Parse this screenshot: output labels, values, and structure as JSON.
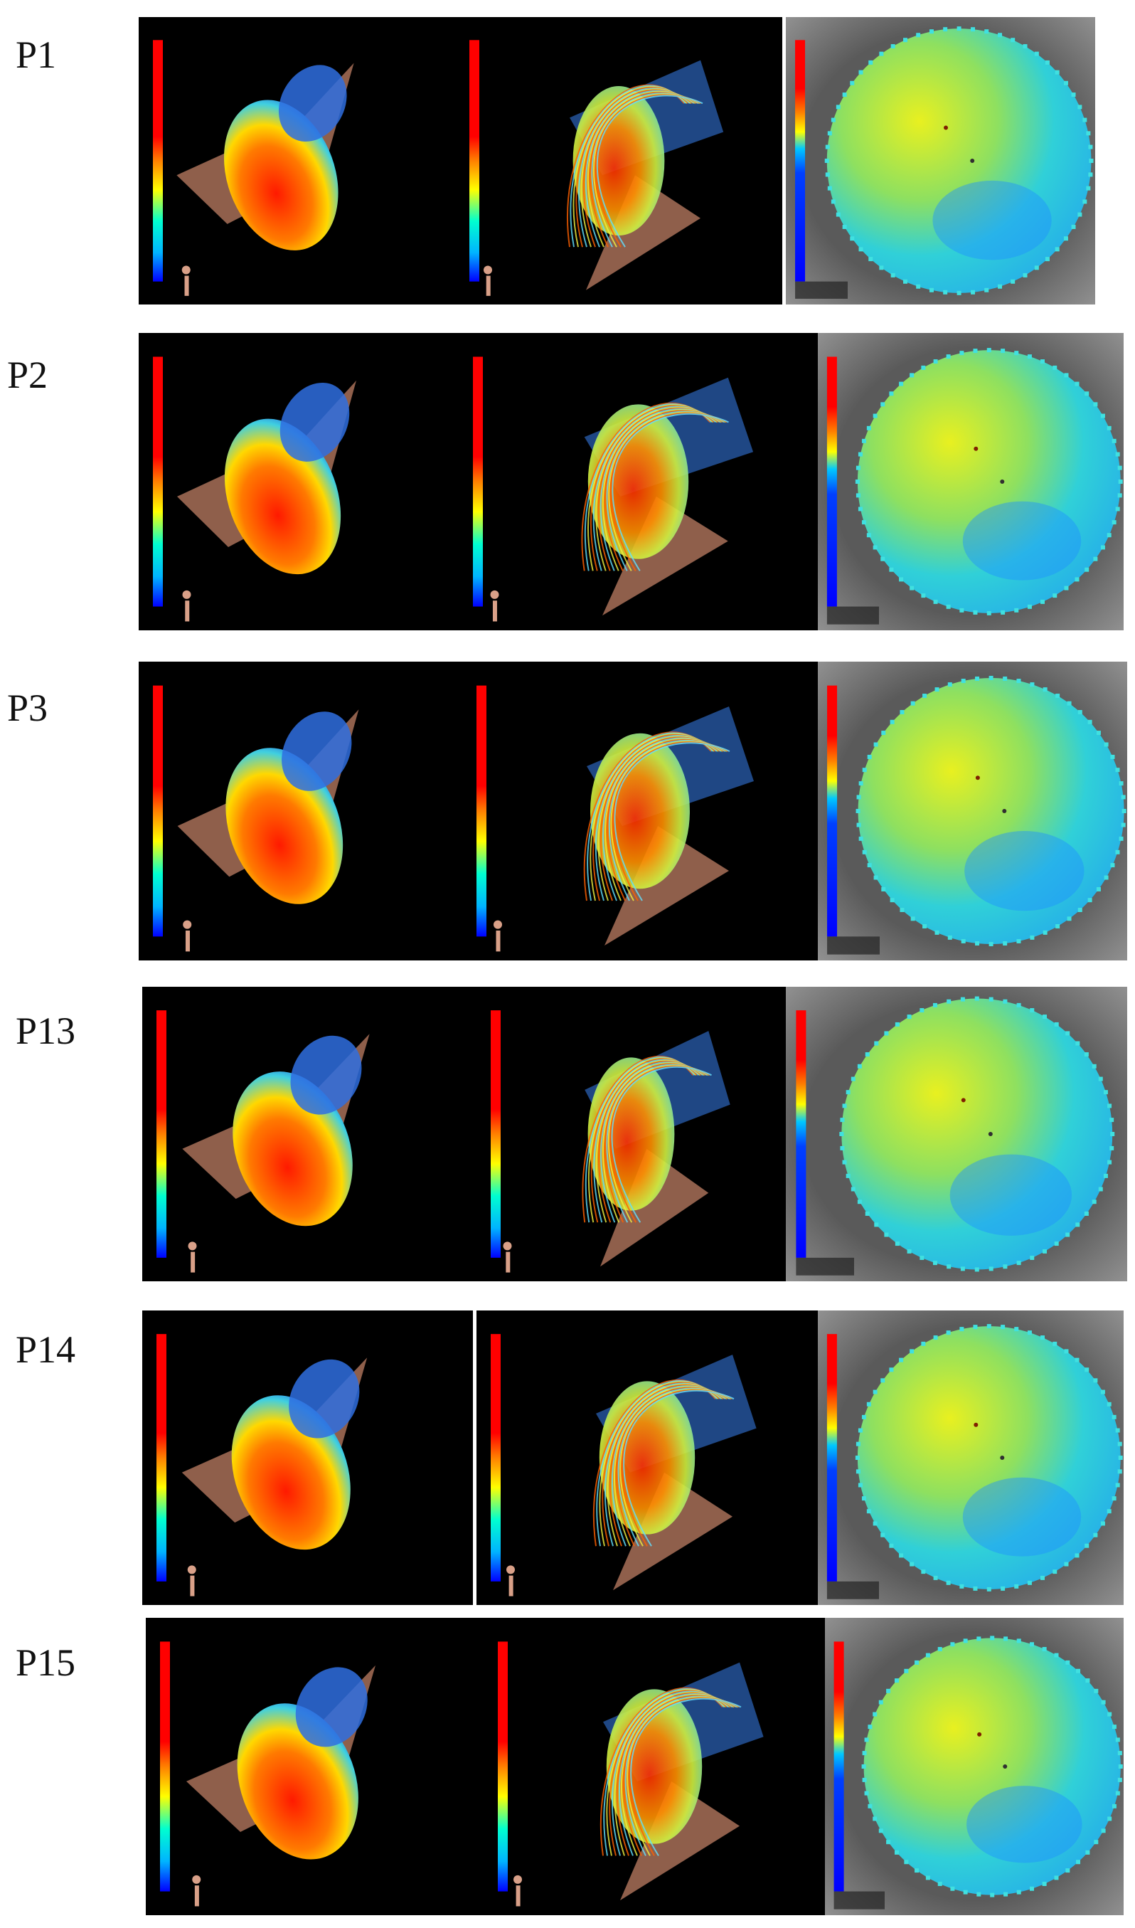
{
  "figure": {
    "rows": [
      {
        "label": "P1"
      },
      {
        "label": "P2"
      },
      {
        "label": "P3"
      },
      {
        "label": "P13"
      },
      {
        "label": "P14"
      },
      {
        "label": "P15"
      }
    ]
  }
}
